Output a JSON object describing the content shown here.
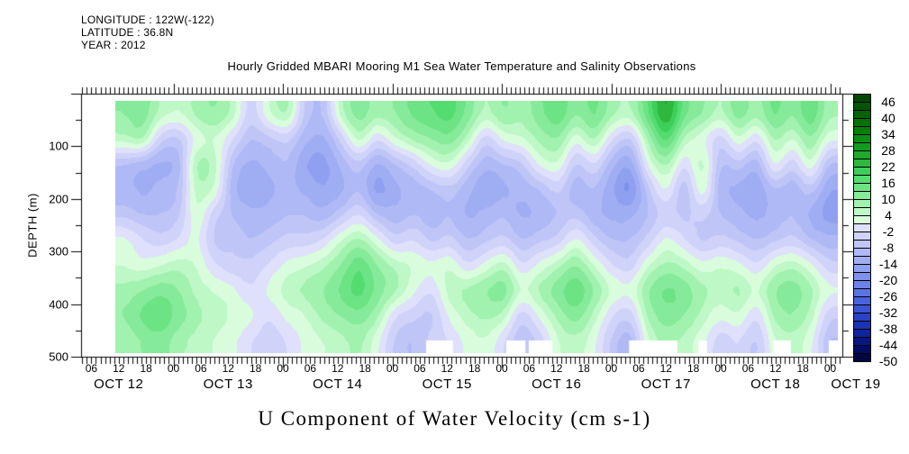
{
  "header": {
    "longitude": "LONGITUDE : 122W(-122)",
    "latitude": "LATITUDE : 36.8N",
    "year": "YEAR : 2012"
  },
  "title": "Hourly Gridded MBARI Mooring M1 Sea Water Temperature and Salinity Observations",
  "footer_title": "U Component of Water Velocity (cm s-1)",
  "y_axis": {
    "label": "DEPTH (m)",
    "tick_labels": [
      "100",
      "200",
      "300",
      "400",
      "500"
    ]
  },
  "x_axis": {
    "hour_label_cycle": [
      "06",
      "12",
      "18",
      "00"
    ],
    "day_labels": [
      "OCT 12",
      "OCT 13",
      "OCT 14",
      "OCT 15",
      "OCT 16",
      "OCT 17",
      "OCT 18",
      "OCT 19"
    ]
  },
  "colorbar": {
    "tick_labels": [
      "46",
      "40",
      "34",
      "28",
      "22",
      "16",
      "10",
      "4",
      "-2",
      "-8",
      "-14",
      "-20",
      "-26",
      "-32",
      "-38",
      "-44",
      "-50"
    ],
    "value_max": 49,
    "value_min": -50,
    "box_step": 3,
    "palette": [
      "#014701",
      "#025502",
      "#036303",
      "#047104",
      "#058005",
      "#0a8e12",
      "#129c1e",
      "#1faa2d",
      "#2fb83f",
      "#3ecf5a",
      "#53dc6f",
      "#6ce384",
      "#85ea99",
      "#a0f2ae",
      "#bdf8c6",
      "#d9fcdd",
      "#dfe0fb",
      "#cfd3f9",
      "#bfc6f7",
      "#afb9f5",
      "#9fadf3",
      "#8fa0f0",
      "#7e92ed",
      "#6d83e9",
      "#5b74e4",
      "#4a64dd",
      "#3a54d3",
      "#2a43c6",
      "#1b33b4",
      "#10249c",
      "#071780",
      "#020d61",
      "#000741"
    ]
  },
  "chart_data": {
    "type": "heatmap",
    "title": "Hourly Gridded MBARI Mooring M1 Sea Water Temperature and Salinity Observations",
    "ylabel": "DEPTH (m)",
    "unit": "cm s-1",
    "year": 2012,
    "x_day_labels": [
      "OCT 12",
      "OCT 13",
      "OCT 14",
      "OCT 15",
      "OCT 16",
      "OCT 17",
      "OCT 18",
      "OCT 19"
    ],
    "ylim_m": [
      0,
      500
    ],
    "zlim": [
      -50,
      49
    ],
    "z_step": 3,
    "grid_t0_hours_after_oct12_0000": 11,
    "grid_t_step_hours": 4,
    "grid_depth_row_centers_m": [
      25,
      75,
      125,
      175,
      225,
      275,
      325,
      375,
      425,
      475
    ],
    "rows": [
      [
        10,
        12,
        6,
        4,
        8,
        10,
        6,
        -4,
        4,
        8,
        -6,
        -8,
        6,
        12,
        8,
        10,
        14,
        16,
        18,
        12,
        6,
        10,
        8,
        12,
        16,
        10,
        14,
        8,
        6,
        16,
        26,
        14,
        10,
        6,
        12,
        8,
        14,
        10,
        16,
        8
      ],
      [
        6,
        8,
        -4,
        -6,
        2,
        4,
        -2,
        -8,
        -6,
        -4,
        -10,
        -12,
        -4,
        6,
        -2,
        4,
        8,
        10,
        12,
        6,
        -4,
        2,
        4,
        8,
        10,
        2,
        8,
        -2,
        -6,
        8,
        18,
        6,
        2,
        -4,
        4,
        -2,
        8,
        4,
        10,
        2
      ],
      [
        -8,
        -10,
        -12,
        -10,
        8,
        6,
        -8,
        -12,
        -10,
        -8,
        -14,
        -16,
        -10,
        -6,
        -12,
        -8,
        -4,
        2,
        4,
        -4,
        -10,
        -8,
        -6,
        2,
        4,
        -6,
        -2,
        -10,
        -14,
        2,
        8,
        -2,
        6,
        -8,
        -6,
        -10,
        2,
        -4,
        4,
        -8
      ],
      [
        -10,
        -12,
        -10,
        -8,
        6,
        4,
        -10,
        -14,
        -12,
        -10,
        -12,
        -14,
        -12,
        -8,
        -16,
        -12,
        -10,
        -8,
        -6,
        -10,
        -14,
        -12,
        -10,
        -8,
        -4,
        -10,
        -8,
        -14,
        -18,
        -6,
        2,
        -8,
        4,
        -10,
        -12,
        -14,
        -8,
        -10,
        -6,
        -14
      ],
      [
        -6,
        -8,
        -8,
        -6,
        4,
        -4,
        -8,
        -10,
        -10,
        -8,
        -8,
        -10,
        -6,
        -2,
        -8,
        -10,
        -8,
        -10,
        -8,
        -12,
        -10,
        -8,
        -12,
        -10,
        -8,
        -6,
        -10,
        -12,
        -12,
        -8,
        -4,
        -6,
        -4,
        -8,
        -10,
        -12,
        -10,
        -8,
        -12,
        -16
      ],
      [
        2,
        -2,
        -4,
        -2,
        2,
        -6,
        -6,
        -8,
        -6,
        -4,
        -4,
        -2,
        4,
        8,
        2,
        -4,
        -2,
        -6,
        -4,
        -8,
        -6,
        -4,
        -8,
        -6,
        -4,
        2,
        -4,
        -8,
        -8,
        -4,
        2,
        -2,
        -6,
        -4,
        -6,
        -8,
        -6,
        -4,
        -8,
        -10
      ],
      [
        4,
        2,
        4,
        6,
        4,
        -2,
        -4,
        -4,
        -2,
        2,
        4,
        6,
        10,
        16,
        10,
        6,
        4,
        2,
        4,
        -2,
        2,
        6,
        -2,
        2,
        6,
        10,
        4,
        -2,
        -4,
        4,
        8,
        6,
        2,
        4,
        2,
        -2,
        4,
        6,
        2,
        -4
      ],
      [
        8,
        10,
        12,
        10,
        6,
        4,
        2,
        -2,
        2,
        6,
        8,
        10,
        14,
        18,
        12,
        8,
        2,
        -2,
        6,
        8,
        10,
        12,
        4,
        8,
        12,
        16,
        10,
        4,
        2,
        10,
        14,
        12,
        8,
        6,
        8,
        4,
        10,
        12,
        8,
        2
      ],
      [
        10,
        14,
        16,
        12,
        8,
        6,
        4,
        2,
        -2,
        2,
        4,
        8,
        10,
        12,
        8,
        -2,
        -4,
        -6,
        2,
        6,
        8,
        6,
        -4,
        2,
        8,
        12,
        6,
        -2,
        -4,
        8,
        12,
        10,
        6,
        2,
        4,
        -2,
        8,
        10,
        6,
        -4
      ],
      [
        8,
        10,
        12,
        8,
        6,
        4,
        2,
        -2,
        -4,
        -2,
        2,
        4,
        6,
        8,
        2,
        -6,
        -8,
        -4,
        -2,
        2,
        4,
        -2,
        -8,
        -4,
        4,
        6,
        2,
        -6,
        -10,
        4,
        8,
        6,
        2,
        -4,
        -2,
        -6,
        4,
        6,
        2,
        -8
      ]
    ],
    "missing_bottom_hours": [
      [
        79.4,
        85.3
      ],
      [
        97.0,
        101.2
      ],
      [
        101.9,
        107.1
      ],
      [
        123.9,
        134.5
      ],
      [
        139.1,
        141.0
      ],
      [
        155.5,
        159.4
      ],
      [
        167.7,
        170.7
      ]
    ]
  }
}
